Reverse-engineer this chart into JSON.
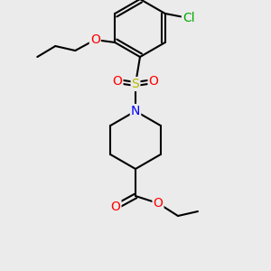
{
  "bg_color": "#ebebeb",
  "bond_color": "#000000",
  "bond_lw": 1.5,
  "atom_colors": {
    "O": "#ff0000",
    "N": "#0000ff",
    "S": "#b8b800",
    "Cl": "#00aa00",
    "C": "#000000"
  },
  "font_size": 9
}
